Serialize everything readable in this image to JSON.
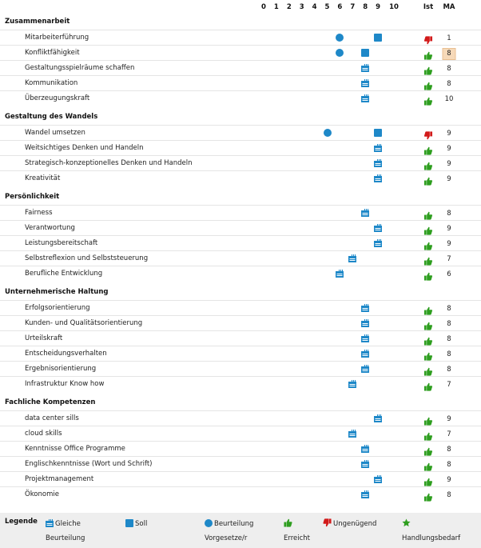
{
  "colors": {
    "accent": "#1e88c8",
    "good": "#2e9e1f",
    "bad": "#d21a1a",
    "highlight": "#f6d9b9"
  },
  "columns": {
    "scale": [
      "0",
      "1",
      "2",
      "3",
      "4",
      "5",
      "6",
      "7",
      "8",
      "9",
      "10"
    ],
    "ist": "Ist",
    "ma": "MA"
  },
  "sections": [
    {
      "title": "Zusammenarbeit",
      "items": [
        {
          "label": "Mitarbeiterführung",
          "circle": 6,
          "square": 9,
          "equal": null,
          "ist": "bad",
          "ma": "1",
          "highlight": false
        },
        {
          "label": "Konfliktfähigkeit",
          "circle": 6,
          "square": 8,
          "equal": null,
          "ist": "good",
          "ma": "8",
          "highlight": true
        },
        {
          "label": "Gestaltungsspielräume schaffen",
          "circle": null,
          "square": null,
          "equal": 8,
          "ist": "good",
          "ma": "8",
          "highlight": false
        },
        {
          "label": "Kommunikation",
          "circle": null,
          "square": null,
          "equal": 8,
          "ist": "good",
          "ma": "8",
          "highlight": false
        },
        {
          "label": "Überzeugungskraft",
          "circle": null,
          "square": null,
          "equal": 8,
          "ist": "good",
          "ma": "10",
          "highlight": false
        }
      ]
    },
    {
      "title": "Gestaltung des Wandels",
      "items": [
        {
          "label": "Wandel umsetzen",
          "circle": 5,
          "square": 9,
          "equal": null,
          "ist": "bad",
          "ma": "9",
          "highlight": false
        },
        {
          "label": "Weitsichtiges Denken und Handeln",
          "circle": null,
          "square": null,
          "equal": 9,
          "ist": "good",
          "ma": "9",
          "highlight": false
        },
        {
          "label": "Strategisch-konzeptionelles Denken und Handeln",
          "circle": null,
          "square": null,
          "equal": 9,
          "ist": "good",
          "ma": "9",
          "highlight": false
        },
        {
          "label": "Kreativität",
          "circle": null,
          "square": null,
          "equal": 9,
          "ist": "good",
          "ma": "9",
          "highlight": false
        }
      ]
    },
    {
      "title": "Persönlichkeit",
      "items": [
        {
          "label": "Fairness",
          "circle": null,
          "square": null,
          "equal": 8,
          "ist": "good",
          "ma": "8",
          "highlight": false
        },
        {
          "label": "Verantwortung",
          "circle": null,
          "square": null,
          "equal": 9,
          "ist": "good",
          "ma": "9",
          "highlight": false
        },
        {
          "label": "Leistungsbereitschaft",
          "circle": null,
          "square": null,
          "equal": 9,
          "ist": "good",
          "ma": "9",
          "highlight": false
        },
        {
          "label": "Selbstreflexion und Selbststeuerung",
          "circle": null,
          "square": null,
          "equal": 7,
          "ist": "good",
          "ma": "7",
          "highlight": false
        },
        {
          "label": "Berufliche Entwicklung",
          "circle": null,
          "square": null,
          "equal": 6,
          "ist": "good",
          "ma": "6",
          "highlight": false
        }
      ]
    },
    {
      "title": "Unternehmerische Haltung",
      "items": [
        {
          "label": "Erfolgsorientierung",
          "circle": null,
          "square": null,
          "equal": 8,
          "ist": "good",
          "ma": "8",
          "highlight": false
        },
        {
          "label": "Kunden- und Qualitätsorientierung",
          "circle": null,
          "square": null,
          "equal": 8,
          "ist": "good",
          "ma": "8",
          "highlight": false
        },
        {
          "label": "Urteilskraft",
          "circle": null,
          "square": null,
          "equal": 8,
          "ist": "good",
          "ma": "8",
          "highlight": false
        },
        {
          "label": "Entscheidungsverhalten",
          "circle": null,
          "square": null,
          "equal": 8,
          "ist": "good",
          "ma": "8",
          "highlight": false
        },
        {
          "label": "Ergebnisorientierung",
          "circle": null,
          "square": null,
          "equal": 8,
          "ist": "good",
          "ma": "8",
          "highlight": false
        },
        {
          "label": "Infrastruktur Know how",
          "circle": null,
          "square": null,
          "equal": 7,
          "ist": "good",
          "ma": "7",
          "highlight": false
        }
      ]
    },
    {
      "title": "Fachliche Kompetenzen",
      "items": [
        {
          "label": "data center sills",
          "circle": null,
          "square": null,
          "equal": 9,
          "ist": "good",
          "ma": "9",
          "highlight": false
        },
        {
          "label": "cloud skills",
          "circle": null,
          "square": null,
          "equal": 7,
          "ist": "good",
          "ma": "7",
          "highlight": false
        },
        {
          "label": "Kenntnisse Office Programme",
          "circle": null,
          "square": null,
          "equal": 8,
          "ist": "good",
          "ma": "8",
          "highlight": false
        },
        {
          "label": "Englischkenntnisse (Wort und Schrift)",
          "circle": null,
          "square": null,
          "equal": 8,
          "ist": "good",
          "ma": "8",
          "highlight": false
        },
        {
          "label": "Projektmanagement",
          "circle": null,
          "square": null,
          "equal": 9,
          "ist": "good",
          "ma": "9",
          "highlight": false
        },
        {
          "label": "Ökonomie",
          "circle": null,
          "square": null,
          "equal": 8,
          "ist": "good",
          "ma": "8",
          "highlight": false
        }
      ]
    }
  ],
  "legend": {
    "title": "Legende",
    "items": [
      {
        "icon": "equal-rating-icon",
        "label": "Gleiche",
        "label2": "Beurteilung"
      },
      {
        "icon": "target-square-icon",
        "label": "Soll",
        "label2": ""
      },
      {
        "icon": "manager-circle-icon",
        "label": "Beurteilung",
        "label2": "Vorgesetze/r"
      },
      {
        "icon": "thumbs-up-icon",
        "label": "",
        "label2": "Erreicht"
      },
      {
        "icon": "thumbs-down-icon",
        "label": "Ungenügend",
        "label2": ""
      },
      {
        "icon": "star-icon",
        "label": "",
        "label2": "Handlungsbedarf"
      }
    ]
  }
}
